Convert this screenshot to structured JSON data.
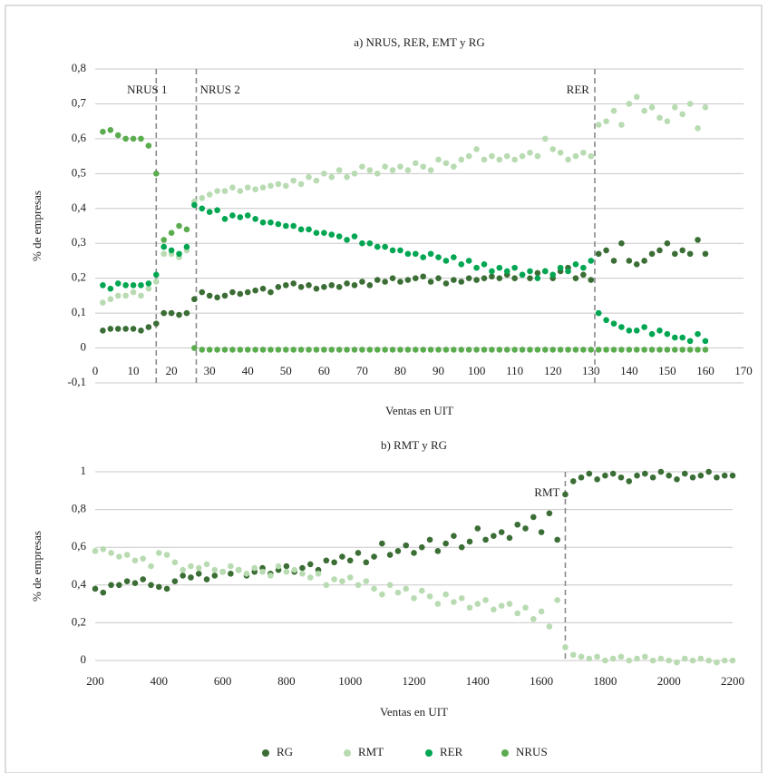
{
  "chart_data": [
    {
      "type": "scatter",
      "title": "a) NRUS, RER, EMT y RG",
      "xlabel": "Ventas en UIT",
      "ylabel": "% de empresas",
      "xlim": [
        0,
        170
      ],
      "xticks": [
        0,
        10,
        20,
        30,
        40,
        50,
        60,
        70,
        80,
        90,
        100,
        110,
        120,
        130,
        140,
        150,
        160,
        170
      ],
      "ylim": [
        -0.1,
        0.8
      ],
      "yticks": [
        {
          "value": -0.1,
          "label": "-0,1"
        },
        0,
        {
          "value": 0.1,
          "label": "0,1"
        },
        {
          "value": 0.2,
          "label": "0,2"
        },
        {
          "value": 0.3,
          "label": "0,3"
        },
        {
          "value": 0.4,
          "label": "0,4"
        },
        {
          "value": 0.5,
          "label": "0,5"
        },
        {
          "value": 0.6,
          "label": "0,6"
        },
        {
          "value": 0.7,
          "label": "0,7"
        },
        {
          "value": 0.8,
          "label": "0,8"
        }
      ],
      "grid": true,
      "annotations": [
        {
          "text": "NRUS 1",
          "x": 16
        },
        {
          "text": "NRUS 2",
          "x": 26.5
        },
        {
          "text": "RER",
          "x": 131
        }
      ],
      "x": [
        2,
        4,
        6,
        8,
        10,
        12,
        14,
        16,
        18,
        20,
        22,
        24,
        26,
        28,
        30,
        32,
        34,
        36,
        38,
        40,
        42,
        44,
        46,
        48,
        50,
        52,
        54,
        56,
        58,
        60,
        62,
        64,
        66,
        68,
        70,
        72,
        74,
        76,
        78,
        80,
        82,
        84,
        86,
        88,
        90,
        92,
        94,
        96,
        98,
        100,
        102,
        104,
        106,
        108,
        110,
        112,
        114,
        116,
        118,
        120,
        122,
        124,
        126,
        128,
        130,
        132,
        134,
        136,
        138,
        140,
        142,
        144,
        146,
        148,
        150,
        152,
        154,
        156,
        158,
        160
      ],
      "series": [
        {
          "name": "RG",
          "color": "#3b6e35",
          "values": [
            0.05,
            0.055,
            0.055,
            0.055,
            0.055,
            0.05,
            0.06,
            0.07,
            0.1,
            0.1,
            0.095,
            0.1,
            0.14,
            0.16,
            0.15,
            0.145,
            0.15,
            0.16,
            0.155,
            0.16,
            0.165,
            0.17,
            0.16,
            0.175,
            0.18,
            0.185,
            0.175,
            0.18,
            0.17,
            0.175,
            0.18,
            0.175,
            0.185,
            0.18,
            0.19,
            0.18,
            0.195,
            0.19,
            0.2,
            0.19,
            0.195,
            0.2,
            0.205,
            0.19,
            0.2,
            0.185,
            0.195,
            0.19,
            0.2,
            0.195,
            0.2,
            0.205,
            0.2,
            0.21,
            0.2,
            0.21,
            0.2,
            0.215,
            0.22,
            0.2,
            0.22,
            0.23,
            0.2,
            0.21,
            0.195,
            0.27,
            0.28,
            0.25,
            0.3,
            0.25,
            0.24,
            0.25,
            0.27,
            0.28,
            0.3,
            0.27,
            0.28,
            0.27,
            0.31,
            0.27
          ]
        },
        {
          "name": "RMT",
          "color": "#b8dbb2",
          "values": [
            0.13,
            0.14,
            0.15,
            0.15,
            0.16,
            0.15,
            0.17,
            0.19,
            0.27,
            0.27,
            0.26,
            0.28,
            0.42,
            0.43,
            0.44,
            0.45,
            0.45,
            0.46,
            0.45,
            0.46,
            0.455,
            0.46,
            0.465,
            0.47,
            0.465,
            0.48,
            0.47,
            0.49,
            0.48,
            0.5,
            0.49,
            0.51,
            0.49,
            0.5,
            0.52,
            0.51,
            0.5,
            0.52,
            0.51,
            0.52,
            0.51,
            0.53,
            0.52,
            0.51,
            0.54,
            0.53,
            0.52,
            0.54,
            0.55,
            0.57,
            0.54,
            0.55,
            0.54,
            0.55,
            0.54,
            0.55,
            0.56,
            0.55,
            0.6,
            0.57,
            0.56,
            0.54,
            0.55,
            0.56,
            0.55,
            0.64,
            0.65,
            0.68,
            0.64,
            0.7,
            0.72,
            0.68,
            0.69,
            0.66,
            0.65,
            0.69,
            0.67,
            0.7,
            0.63,
            0.69
          ]
        },
        {
          "name": "RER",
          "color": "#00a651",
          "values": [
            0.18,
            0.17,
            0.185,
            0.18,
            0.18,
            0.18,
            0.185,
            0.21,
            0.29,
            0.28,
            0.27,
            0.29,
            0.41,
            0.4,
            0.39,
            0.395,
            0.37,
            0.38,
            0.375,
            0.38,
            0.37,
            0.36,
            0.36,
            0.355,
            0.35,
            0.35,
            0.34,
            0.34,
            0.33,
            0.33,
            0.325,
            0.32,
            0.31,
            0.32,
            0.3,
            0.3,
            0.29,
            0.29,
            0.28,
            0.28,
            0.27,
            0.27,
            0.26,
            0.27,
            0.26,
            0.25,
            0.26,
            0.24,
            0.25,
            0.23,
            0.24,
            0.22,
            0.23,
            0.22,
            0.23,
            0.21,
            0.22,
            0.2,
            0.22,
            0.21,
            0.23,
            0.22,
            0.24,
            0.23,
            0.25,
            0.1,
            0.08,
            0.07,
            0.06,
            0.05,
            0.05,
            0.06,
            0.04,
            0.05,
            0.04,
            0.03,
            0.03,
            0.02,
            0.04,
            0.02
          ]
        },
        {
          "name": "NRUS",
          "color": "#5aac4e",
          "values": [
            0.62,
            0.625,
            0.61,
            0.6,
            0.6,
            0.6,
            0.58,
            0.5,
            0.31,
            0.33,
            0.35,
            0.34,
            0.0,
            -0.005,
            -0.005,
            -0.005,
            -0.005,
            -0.005,
            -0.005,
            -0.005,
            -0.005,
            -0.005,
            -0.005,
            -0.005,
            -0.005,
            -0.005,
            -0.005,
            -0.005,
            -0.005,
            -0.005,
            -0.005,
            -0.005,
            -0.005,
            -0.005,
            -0.005,
            -0.005,
            -0.005,
            -0.005,
            -0.005,
            -0.005,
            -0.005,
            -0.005,
            -0.005,
            -0.005,
            -0.005,
            -0.005,
            -0.005,
            -0.005,
            -0.005,
            -0.005,
            -0.005,
            -0.005,
            -0.005,
            -0.005,
            -0.005,
            -0.005,
            -0.005,
            -0.005,
            -0.005,
            -0.005,
            -0.005,
            -0.005,
            -0.005,
            -0.005,
            -0.005,
            -0.005,
            -0.005,
            -0.005,
            -0.005,
            -0.005,
            -0.005,
            -0.005,
            -0.005,
            -0.005,
            -0.005,
            -0.005,
            -0.005,
            -0.005,
            -0.005,
            -0.005
          ]
        }
      ]
    },
    {
      "type": "scatter",
      "title": "b) RMT y RG",
      "xlabel": "Ventas en UIT",
      "ylabel": "% de empresas",
      "xlim": [
        200,
        2200
      ],
      "xticks": [
        200,
        400,
        600,
        800,
        1000,
        1200,
        1400,
        1600,
        1800,
        2000,
        2200
      ],
      "ylim": [
        0,
        1
      ],
      "yticks": [
        0,
        {
          "value": 0.2,
          "label": "0,2"
        },
        {
          "value": 0.4,
          "label": "0,4"
        },
        {
          "value": 0.6,
          "label": "0,6"
        },
        {
          "value": 0.8,
          "label": "0,8"
        },
        1
      ],
      "grid": true,
      "annotations": [
        {
          "text": "RMT",
          "x": 1675
        }
      ],
      "x": [
        200,
        225,
        250,
        275,
        300,
        325,
        350,
        375,
        400,
        425,
        450,
        475,
        500,
        525,
        550,
        575,
        600,
        625,
        650,
        675,
        700,
        725,
        750,
        775,
        800,
        825,
        850,
        875,
        900,
        925,
        950,
        975,
        1000,
        1025,
        1050,
        1075,
        1100,
        1125,
        1150,
        1175,
        1200,
        1225,
        1250,
        1275,
        1300,
        1325,
        1350,
        1375,
        1400,
        1425,
        1450,
        1475,
        1500,
        1525,
        1550,
        1575,
        1600,
        1625,
        1650,
        1675,
        1700,
        1725,
        1750,
        1775,
        1800,
        1825,
        1850,
        1875,
        1900,
        1925,
        1950,
        1975,
        2000,
        2025,
        2050,
        2075,
        2100,
        2125,
        2150,
        2175,
        2200
      ],
      "series": [
        {
          "name": "RG",
          "color": "#3b6e35",
          "values": [
            0.38,
            0.36,
            0.4,
            0.4,
            0.42,
            0.41,
            0.43,
            0.4,
            0.39,
            0.38,
            0.42,
            0.45,
            0.44,
            0.46,
            0.43,
            0.45,
            0.47,
            0.46,
            0.48,
            0.45,
            0.47,
            0.49,
            0.46,
            0.48,
            0.5,
            0.47,
            0.49,
            0.51,
            0.48,
            0.53,
            0.52,
            0.55,
            0.53,
            0.57,
            0.52,
            0.55,
            0.62,
            0.56,
            0.58,
            0.61,
            0.57,
            0.6,
            0.64,
            0.58,
            0.62,
            0.66,
            0.6,
            0.63,
            0.7,
            0.64,
            0.66,
            0.68,
            0.65,
            0.72,
            0.7,
            0.76,
            0.68,
            0.78,
            0.64,
            0.88,
            0.95,
            0.97,
            0.99,
            0.96,
            0.98,
            0.99,
            0.97,
            0.95,
            0.98,
            0.99,
            0.97,
            1.0,
            0.98,
            0.96,
            0.99,
            0.97,
            0.98,
            1.0,
            0.97,
            0.98,
            0.98
          ]
        },
        {
          "name": "RMT",
          "color": "#b8dbb2",
          "values": [
            0.58,
            0.59,
            0.57,
            0.55,
            0.56,
            0.53,
            0.54,
            0.5,
            0.57,
            0.56,
            0.52,
            0.48,
            0.5,
            0.49,
            0.51,
            0.48,
            0.47,
            0.5,
            0.48,
            0.46,
            0.49,
            0.47,
            0.45,
            0.5,
            0.47,
            0.48,
            0.46,
            0.44,
            0.46,
            0.4,
            0.43,
            0.42,
            0.44,
            0.4,
            0.42,
            0.38,
            0.35,
            0.4,
            0.36,
            0.38,
            0.33,
            0.37,
            0.34,
            0.3,
            0.35,
            0.31,
            0.33,
            0.28,
            0.3,
            0.32,
            0.27,
            0.29,
            0.3,
            0.25,
            0.28,
            0.22,
            0.26,
            0.18,
            0.32,
            0.07,
            0.03,
            0.02,
            0.01,
            0.02,
            0.0,
            0.01,
            0.02,
            0.0,
            0.01,
            0.02,
            0.0,
            0.01,
            0.0,
            -0.01,
            0.01,
            0.0,
            0.01,
            0.0,
            -0.01,
            0.0,
            0.0
          ]
        }
      ]
    }
  ]
}
